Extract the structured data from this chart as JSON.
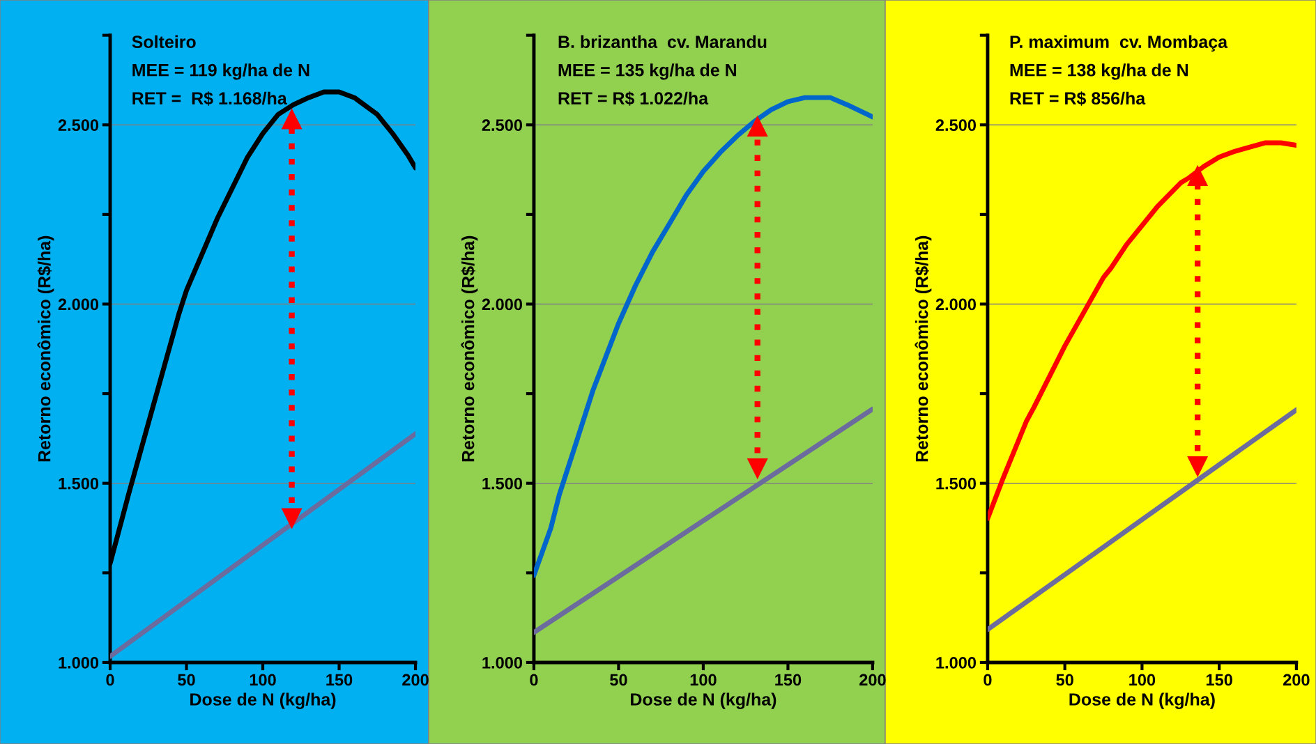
{
  "chart_data": [
    {
      "type": "line",
      "title": "Solteiro",
      "annotations": [
        "MEE = 119 kg/ha de N",
        "RET =  R$ 1.168/ha"
      ],
      "xlabel": "Dose de N (kg/ha)",
      "ylabel": "Retorno econômico (R$/ha)",
      "xlim": [
        0,
        200
      ],
      "xticks": [
        0,
        50,
        100,
        150,
        200
      ],
      "ylim": [
        1000,
        2750
      ],
      "yticks": [
        {
          "value": 1000,
          "label": "1.000"
        },
        {
          "value": 1250,
          "label": null
        },
        {
          "value": 1500,
          "label": "1.500"
        },
        {
          "value": 1750,
          "label": null
        },
        {
          "value": 2000,
          "label": "2.000"
        },
        {
          "value": 2250,
          "label": null
        },
        {
          "value": 2500,
          "label": "2.500"
        },
        {
          "value": 2750,
          "label": null
        }
      ],
      "grid": "y",
      "legend": false,
      "series": [
        {
          "color": "#000000",
          "x": [
            0,
            12,
            25,
            45,
            50,
            70,
            90,
            100,
            110,
            120,
            130,
            140,
            150,
            160,
            175,
            185,
            195,
            200
          ],
          "values": [
            1276,
            1468,
            1667,
            1972,
            2038,
            2237,
            2410,
            2476,
            2529,
            2556,
            2576,
            2592,
            2592,
            2576,
            2529,
            2476,
            2416,
            2380
          ]
        },
        {
          "color": "#6b6b9e",
          "x": [
            0,
            200
          ],
          "values": [
            1017,
            1638
          ]
        },
        {
          "color": "#ff0000",
          "x": [
            119,
            119
          ],
          "values": [
            1402,
            2516
          ],
          "line_style": "dotted",
          "marker": "triangle"
        }
      ]
    },
    {
      "type": "line",
      "title": "B. brizantha  cv. Marandu",
      "annotations": [
        "MEE = 135 kg/ha de N",
        "RET = R$ 1.022/ha"
      ],
      "xlabel": "Dose de N (kg/ha)",
      "ylabel": "Retorno econômico (R$/ha)",
      "xlim": [
        0,
        200
      ],
      "xticks": [
        0,
        50,
        100,
        150,
        200
      ],
      "ylim": [
        1000,
        2750
      ],
      "yticks": [
        {
          "value": 1000,
          "label": "1.000"
        },
        {
          "value": 1250,
          "label": null
        },
        {
          "value": 1500,
          "label": "1.500"
        },
        {
          "value": 1750,
          "label": null
        },
        {
          "value": 2000,
          "label": "2.000"
        },
        {
          "value": 2250,
          "label": null
        },
        {
          "value": 2500,
          "label": "2.500"
        },
        {
          "value": 2750,
          "label": null
        }
      ],
      "grid": "y",
      "legend": false,
      "series": [
        {
          "color": "#0066cc",
          "x": [
            0,
            10,
            15,
            25,
            35,
            50,
            60,
            70,
            80,
            90,
            100,
            110,
            120,
            130,
            140,
            150,
            160,
            175,
            185,
            200
          ],
          "values": [
            1243,
            1375,
            1468,
            1614,
            1761,
            1946,
            2052,
            2145,
            2224,
            2304,
            2370,
            2423,
            2469,
            2509,
            2542,
            2565,
            2576,
            2576,
            2556,
            2522
          ]
        },
        {
          "color": "#6b6b9e",
          "x": [
            0,
            200
          ],
          "values": [
            1084,
            1707
          ]
        },
        {
          "color": "#ff0000",
          "x": [
            132,
            132
          ],
          "values": [
            1541,
            2496
          ],
          "line_style": "dotted",
          "marker": "triangle"
        }
      ]
    },
    {
      "type": "line",
      "title": "P. maximum  cv. Mombaça",
      "annotations": [
        "MEE = 138 kg/ha de N",
        "RET = R$ 856/ha"
      ],
      "xlabel": "Dose de N (kg/ha)",
      "ylabel": "Retorno econômico (R$/ha)",
      "xlim": [
        0,
        200
      ],
      "xticks": [
        0,
        50,
        100,
        150,
        200
      ],
      "ylim": [
        1000,
        2750
      ],
      "yticks": [
        {
          "value": 1000,
          "label": "1.000"
        },
        {
          "value": 1250,
          "label": null
        },
        {
          "value": 1500,
          "label": "1.500"
        },
        {
          "value": 1750,
          "label": null
        },
        {
          "value": 2000,
          "label": "2.000"
        },
        {
          "value": 2250,
          "label": null
        },
        {
          "value": 2500,
          "label": "2.500"
        },
        {
          "value": 2750,
          "label": null
        }
      ],
      "grid": "y",
      "legend": false,
      "series": [
        {
          "color": "#ff0000",
          "x": [
            0,
            10,
            25,
            30,
            50,
            75,
            80,
            90,
            110,
            125,
            130,
            140,
            150,
            160,
            180,
            190,
            200
          ],
          "values": [
            1402,
            1514,
            1672,
            1712,
            1883,
            2074,
            2101,
            2166,
            2272,
            2338,
            2351,
            2384,
            2410,
            2426,
            2450,
            2450,
            2443
          ]
        },
        {
          "color": "#6b6b9e",
          "x": [
            0,
            200
          ],
          "values": [
            1092,
            1705
          ]
        },
        {
          "color": "#ff0000",
          "x": [
            136,
            136
          ],
          "values": [
            1547,
            2358
          ],
          "line_style": "dotted",
          "marker": "triangle"
        }
      ]
    }
  ]
}
